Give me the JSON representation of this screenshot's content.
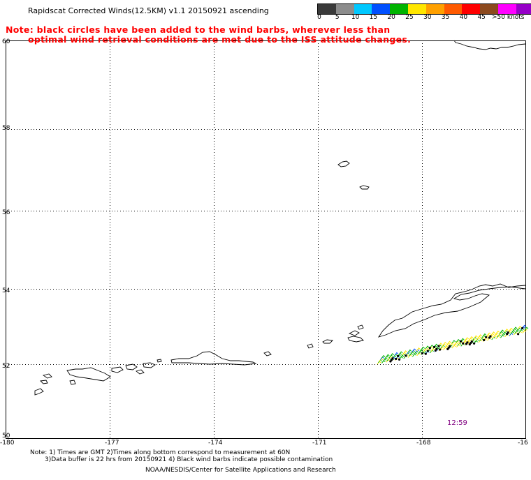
{
  "title": "Rapidscat Corrected Winds(12.5KM) v1.1 20150921 ascending",
  "notes": [
    "Note: black circles have been added to the wind barbs, wherever less than",
    "optimal wind retrieval conditions are met due to the ISS attitude changes."
  ],
  "colorbar": {
    "colors": [
      "#3a3a3a",
      "#8c8c8c",
      "#00c8ff",
      "#0050ff",
      "#00b400",
      "#ffe600",
      "#ffa000",
      "#ff5a00",
      "#ff0000",
      "#8c4a1e",
      "#ff00ff",
      "#9600c8"
    ],
    "labels": [
      "0",
      "5",
      "10",
      "15",
      "20",
      "25",
      "30",
      "35",
      "40",
      "45",
      ">50 knots"
    ]
  },
  "axes": {
    "x_labels": [
      "-180",
      "-177",
      "-174",
      "-171",
      "-168",
      "-16"
    ],
    "y_labels": [
      "50",
      "52",
      "54",
      "56",
      "58",
      "60"
    ]
  },
  "time_label": "12:59",
  "footnotes": [
    "Note: 1) Times are GMT 2)Times along bottom correspond to measurement at 60N",
    "3)Data buffer is 22 hrs from 20150921 4) Black wind barbs indicate possible contamination"
  ],
  "credit": "NOAA/NESDIS/Center for Satellite Applications and Research"
}
